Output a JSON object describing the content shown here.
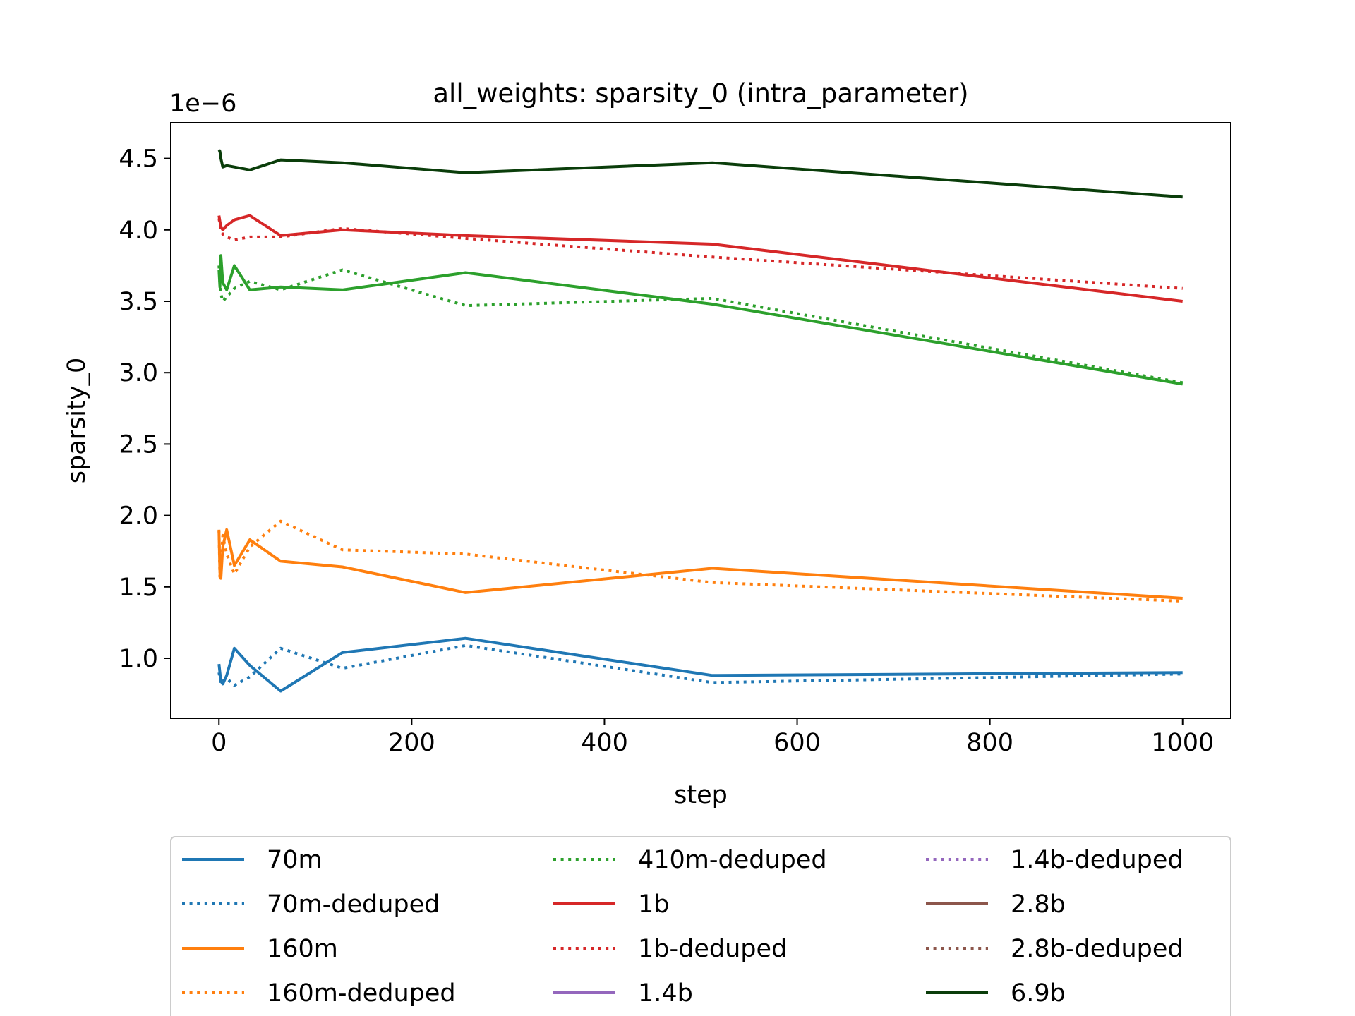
{
  "chart_data": {
    "type": "line",
    "title": "all_weights: sparsity_0 (intra_parameter)",
    "xlabel": "step",
    "ylabel": "sparsity_0",
    "y_offset_label": "1e−6",
    "y_scale": 1e-06,
    "xlim": [
      -50,
      1050
    ],
    "ylim": [
      0.58,
      4.75
    ],
    "xticks": [
      0,
      200,
      400,
      600,
      800,
      1000
    ],
    "xtick_labels": [
      "0",
      "200",
      "400",
      "600",
      "800",
      "1000"
    ],
    "yticks": [
      1.0,
      1.5,
      2.0,
      2.5,
      3.0,
      3.5,
      4.0,
      4.5
    ],
    "ytick_labels": [
      "1.0",
      "1.5",
      "2.0",
      "2.5",
      "3.0",
      "3.5",
      "4.0",
      "4.5"
    ],
    "grid": false,
    "legend_position": "bottom",
    "series": [
      {
        "name": "70m",
        "color": "#1f77b4",
        "style": "solid",
        "x": [
          0,
          1,
          2,
          4,
          8,
          16,
          32,
          64,
          128,
          256,
          512,
          1000
        ],
        "y": [
          0.96,
          0.9,
          0.84,
          0.82,
          0.88,
          1.07,
          0.95,
          0.77,
          1.04,
          1.14,
          0.88,
          0.9
        ]
      },
      {
        "name": "70m-deduped",
        "color": "#1f77b4",
        "style": "dotted",
        "x": [
          0,
          1,
          2,
          4,
          8,
          16,
          32,
          64,
          128,
          256,
          512,
          1000
        ],
        "y": [
          0.9,
          0.86,
          0.82,
          0.84,
          0.86,
          0.81,
          0.87,
          1.07,
          0.93,
          1.09,
          0.83,
          0.89
        ]
      },
      {
        "name": "160m",
        "color": "#ff7f0e",
        "style": "solid",
        "x": [
          0,
          1,
          2,
          4,
          8,
          16,
          32,
          64,
          128,
          256,
          512,
          1000
        ],
        "y": [
          1.89,
          1.6,
          1.56,
          1.78,
          1.9,
          1.65,
          1.83,
          1.68,
          1.64,
          1.46,
          1.63,
          1.42
        ]
      },
      {
        "name": "160m-deduped",
        "color": "#ff7f0e",
        "style": "dotted",
        "x": [
          0,
          1,
          2,
          4,
          8,
          16,
          32,
          64,
          128,
          256,
          512,
          1000
        ],
        "y": [
          1.9,
          1.56,
          1.66,
          1.86,
          1.73,
          1.59,
          1.78,
          1.96,
          1.76,
          1.73,
          1.53,
          1.4
        ]
      },
      {
        "name": "410m-deduped",
        "color": "#2ca02c",
        "style": "dotted",
        "x": [
          0,
          1,
          2,
          4,
          8,
          16,
          32,
          64,
          128,
          256,
          512,
          1000
        ],
        "y": [
          3.75,
          3.62,
          3.55,
          3.5,
          3.53,
          3.59,
          3.64,
          3.58,
          3.72,
          3.47,
          3.52,
          2.93
        ]
      },
      {
        "name": "1b",
        "color": "#d62728",
        "style": "solid",
        "x": [
          0,
          1,
          2,
          4,
          8,
          16,
          32,
          64,
          128,
          256,
          512,
          1000
        ],
        "y": [
          4.1,
          4.06,
          4.02,
          4.0,
          4.03,
          4.07,
          4.1,
          3.96,
          4.0,
          3.96,
          3.9,
          3.5
        ]
      },
      {
        "name": "1b-deduped",
        "color": "#d62728",
        "style": "dotted",
        "x": [
          0,
          1,
          2,
          4,
          8,
          16,
          32,
          64,
          128,
          256,
          512,
          1000
        ],
        "y": [
          4.08,
          4.04,
          3.99,
          3.97,
          3.95,
          3.93,
          3.95,
          3.95,
          4.01,
          3.94,
          3.81,
          3.59
        ]
      },
      {
        "name": "1.4b",
        "color": "#9467bd",
        "style": "solid",
        "x": [],
        "y": []
      },
      {
        "name": "1.4b-deduped",
        "color": "#9467bd",
        "style": "dotted",
        "x": [],
        "y": []
      },
      {
        "name": "2.8b",
        "color": "#8c564b",
        "style": "solid",
        "x": [],
        "y": []
      },
      {
        "name": "2.8b-deduped",
        "color": "#8c564b",
        "style": "dotted",
        "x": [],
        "y": []
      },
      {
        "name": "6.9b",
        "color": "#0a3d0a",
        "style": "solid",
        "x": [
          0,
          1,
          2,
          4,
          8,
          16,
          32,
          64,
          128,
          256,
          512,
          1000
        ],
        "y": [
          4.56,
          4.55,
          4.5,
          4.44,
          4.45,
          4.44,
          4.42,
          4.49,
          4.47,
          4.4,
          4.47,
          4.23
        ]
      }
    ],
    "extra_lines": [
      {
        "color": "#2ca02c",
        "style": "solid",
        "x": [
          0,
          1,
          2,
          4,
          8,
          16,
          32,
          64,
          128,
          256,
          512,
          1000
        ],
        "y": [
          3.72,
          3.6,
          3.82,
          3.63,
          3.58,
          3.75,
          3.58,
          3.6,
          3.58,
          3.7,
          3.48,
          2.92
        ]
      }
    ]
  }
}
